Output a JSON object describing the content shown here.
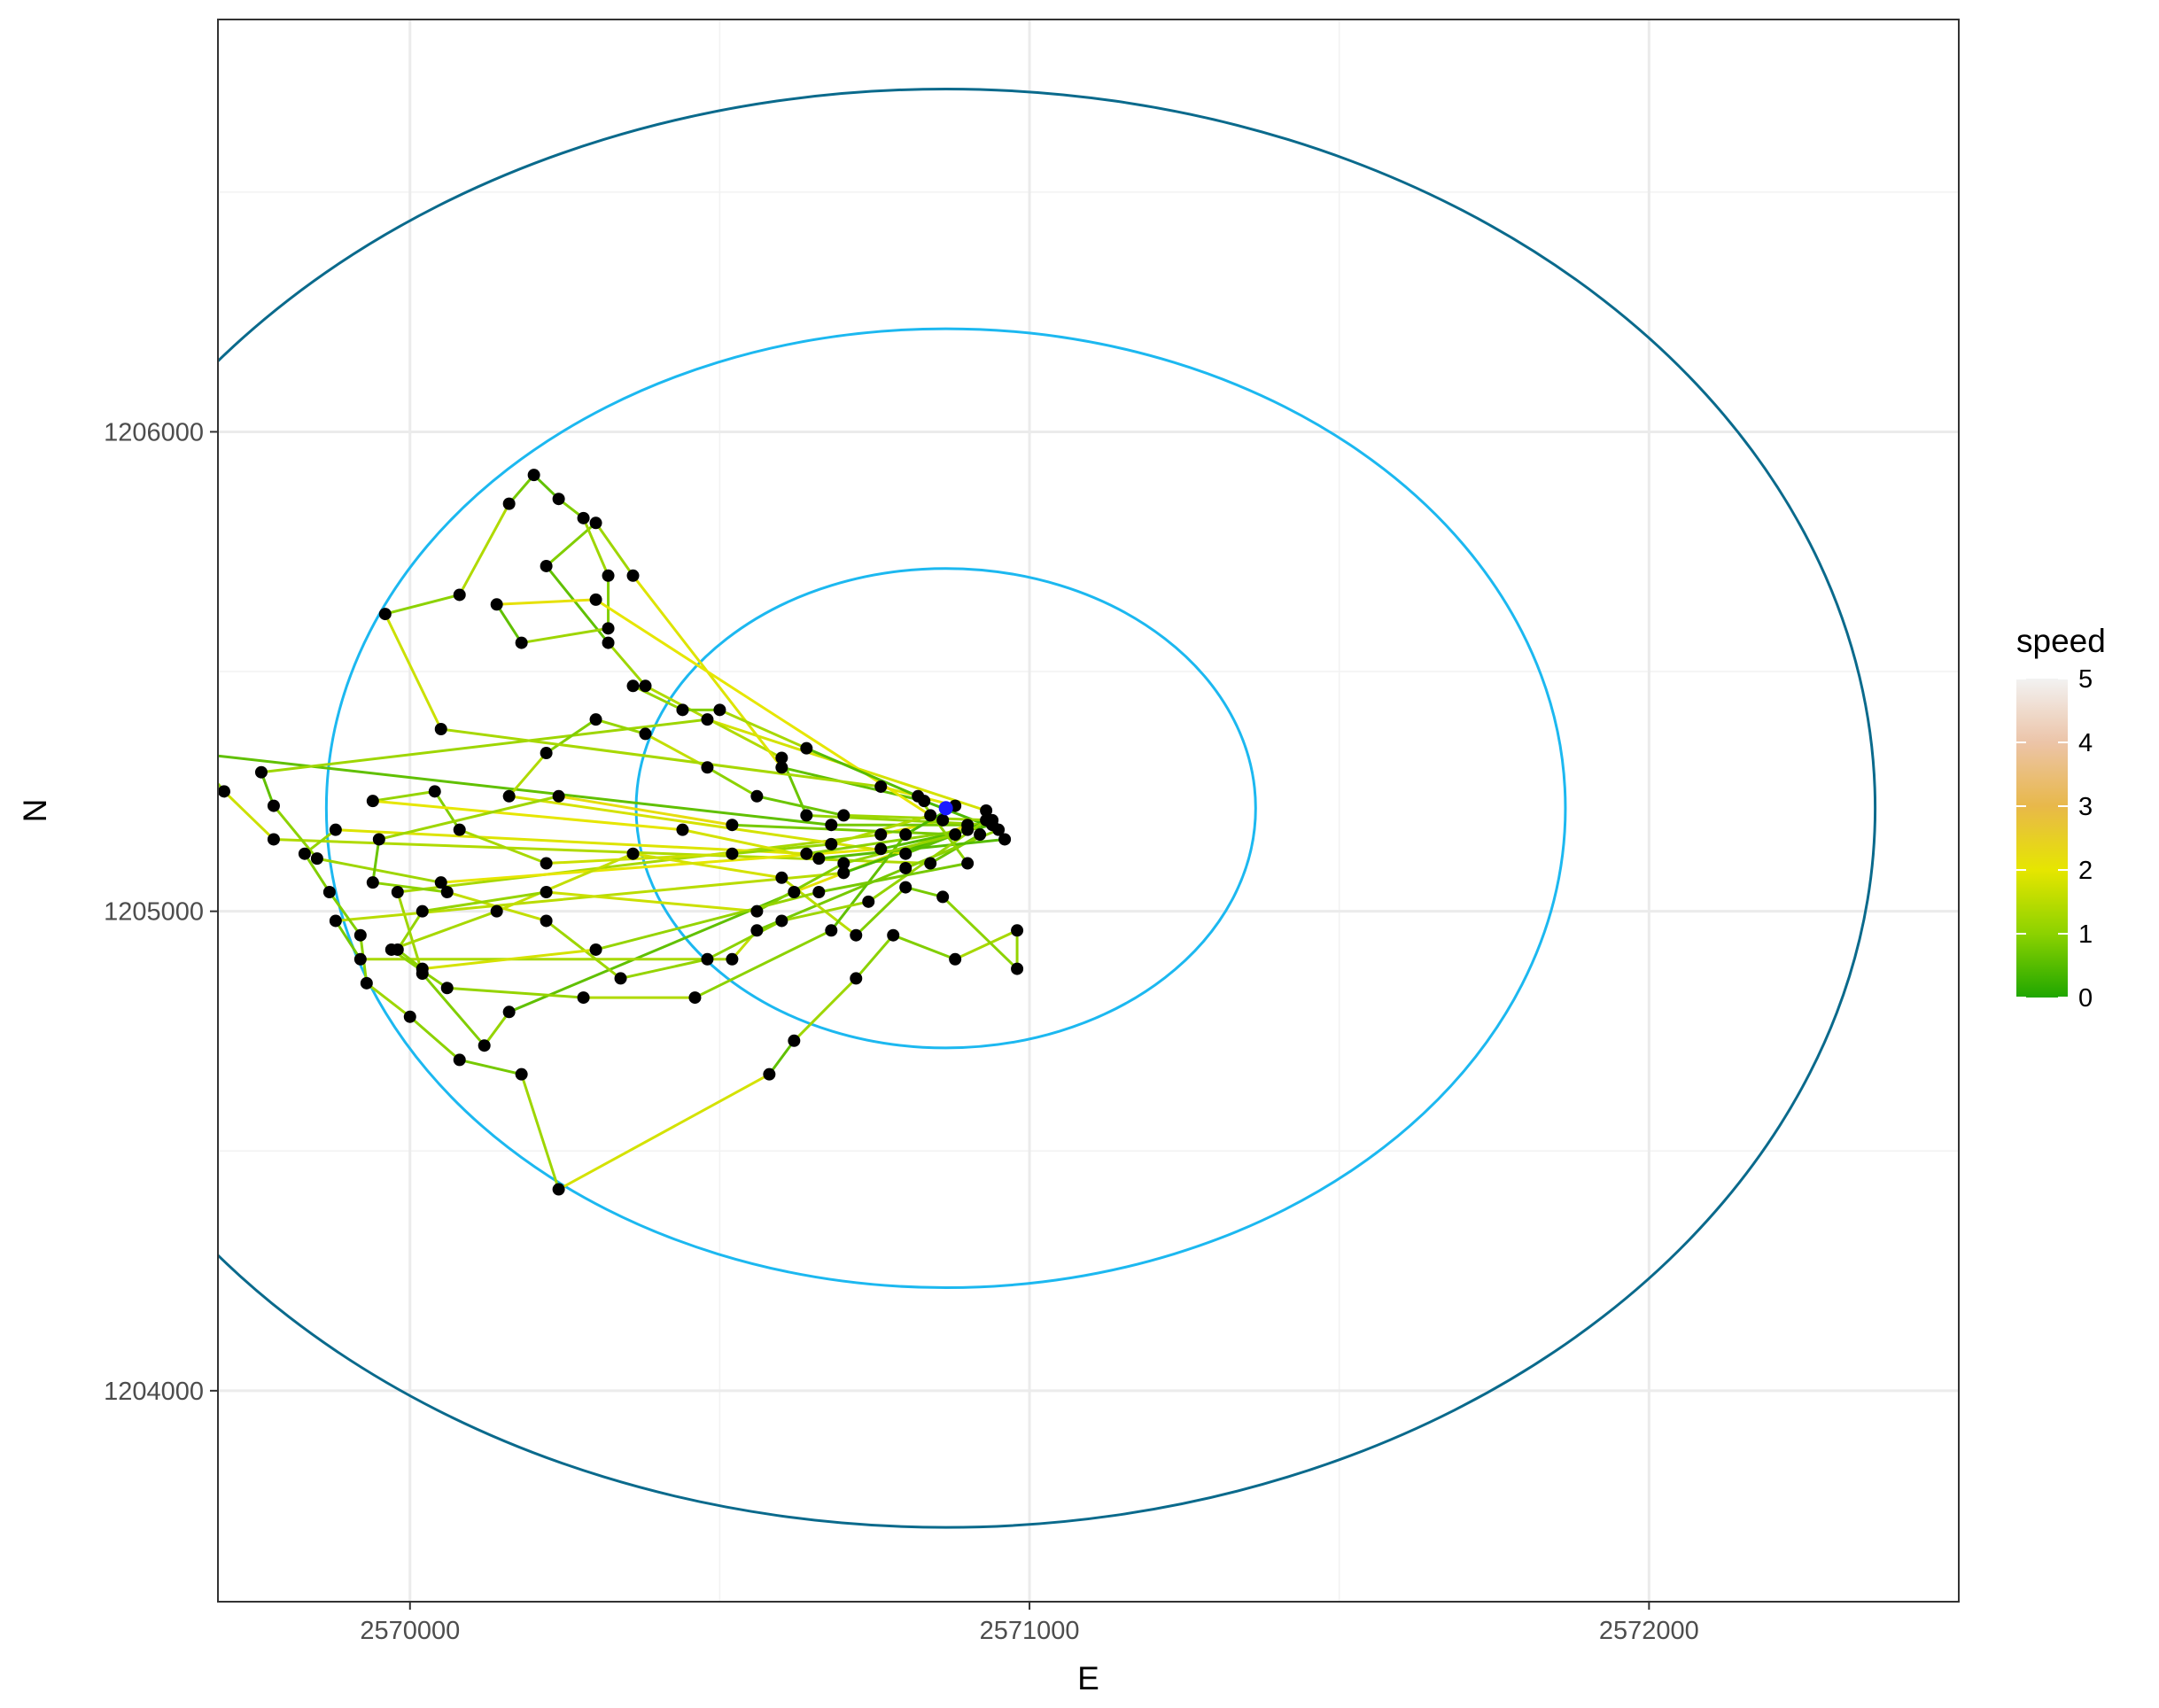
{
  "chart_data": {
    "type": "scatter",
    "xlabel": "E",
    "ylabel": "N",
    "xlim": [
      2569690,
      2572500
    ],
    "ylim": [
      1203560,
      1206860
    ],
    "x_ticks": [
      2570000,
      2571000,
      2572000
    ],
    "x_tick_labels": [
      "2570000",
      "2571000",
      "2572000"
    ],
    "y_ticks": [
      1204000,
      1205000,
      1206000
    ],
    "y_tick_labels": [
      "1204000",
      "1205000",
      "1206000"
    ],
    "grid": true,
    "legend": {
      "title": "speed",
      "position": "right",
      "range": [
        0,
        5
      ],
      "ticks": [
        0,
        1,
        2,
        3,
        4,
        5
      ],
      "tick_labels": [
        "0",
        "1",
        "2",
        "3",
        "4",
        "5"
      ],
      "colors": [
        "#1fa600",
        "#8cd200",
        "#e6e600",
        "#e8b84a",
        "#ecc4a8",
        "#f2f2f2"
      ]
    },
    "center": {
      "x": 2570865,
      "y": 1205215,
      "color": "#1a1aff"
    },
    "circles": [
      {
        "radius": 500,
        "color": "#1cb8f0"
      },
      {
        "radius": 1000,
        "color": "#1cb8f0"
      },
      {
        "radius": 1500,
        "color": "#0a6a8c"
      }
    ],
    "track": [
      [
        2570860,
        1205190,
        0.4
      ],
      [
        2570760,
        1205160,
        2.0
      ],
      [
        2569980,
        1205040,
        1.3
      ],
      [
        2570020,
        1204870,
        1.2
      ],
      [
        2570120,
        1204720,
        0.9
      ],
      [
        2570160,
        1204790,
        1.1
      ],
      [
        2570620,
        1205040,
        0.6
      ],
      [
        2570900,
        1205180,
        2.1
      ],
      [
        2570680,
        1205180,
        0.8
      ],
      [
        2569650,
        1205330,
        0.6
      ],
      [
        2569700,
        1205250,
        1.0
      ],
      [
        2569780,
        1205150,
        1.7
      ],
      [
        2570840,
        1205100,
        1.4
      ],
      [
        2570920,
        1205160,
        0.7
      ],
      [
        2570930,
        1205210,
        0.3
      ],
      [
        2570480,
        1205400,
        1.8
      ],
      [
        2569760,
        1205290,
        1.2
      ],
      [
        2569780,
        1205220,
        0.6
      ],
      [
        2569850,
        1205110,
        1.0
      ],
      [
        2570050,
        1205060,
        1.2
      ],
      [
        2570760,
        1205130,
        2.0
      ],
      [
        2570940,
        1205180,
        0.5
      ],
      [
        2570640,
        1205200,
        1.1
      ],
      [
        2570600,
        1205320,
        0.7
      ],
      [
        2570380,
        1205470,
        1.4
      ],
      [
        2570320,
        1205560,
        1.2
      ],
      [
        2570220,
        1205720,
        0.6
      ],
      [
        2570300,
        1205810,
        0.9
      ],
      [
        2570360,
        1205700,
        1.2
      ],
      [
        2570600,
        1205300,
        1.9
      ],
      [
        2570830,
        1205230,
        0.6
      ],
      [
        2570950,
        1205170,
        0.4
      ],
      [
        2570800,
        1205090,
        1.0
      ],
      [
        2570560,
        1204960,
        0.8
      ],
      [
        2570520,
        1204900,
        1.6
      ],
      [
        2569920,
        1204900,
        1.3
      ],
      [
        2569880,
        1204980,
        0.8
      ],
      [
        2570700,
        1205080,
        1.5
      ],
      [
        2570940,
        1205190,
        0.4
      ],
      [
        2570700,
        1205200,
        1.2
      ],
      [
        2570560,
        1205240,
        0.7
      ],
      [
        2570480,
        1205300,
        1.0
      ],
      [
        2570380,
        1205370,
        1.6
      ],
      [
        2570300,
        1205400,
        1.1
      ],
      [
        2570220,
        1205330,
        0.9
      ],
      [
        2570160,
        1205240,
        1.4
      ],
      [
        2570800,
        1205120,
        1.8
      ],
      [
        2570900,
        1205170,
        0.6
      ],
      [
        2570640,
        1205120,
        1.0
      ],
      [
        2569880,
        1205170,
        1.9
      ],
      [
        2569830,
        1205120,
        1.1
      ],
      [
        2569870,
        1205040,
        0.9
      ],
      [
        2569920,
        1204950,
        0.9
      ],
      [
        2569930,
        1204850,
        1.0
      ],
      [
        2570000,
        1204780,
        1.2
      ],
      [
        2570080,
        1204690,
        1.0
      ],
      [
        2570180,
        1204660,
        0.8
      ],
      [
        2570240,
        1204420,
        1.2
      ],
      [
        2570580,
        1204660,
        1.8
      ],
      [
        2570620,
        1204730,
        0.6
      ],
      [
        2570720,
        1204860,
        1.2
      ],
      [
        2570780,
        1204950,
        1.0
      ],
      [
        2570880,
        1204900,
        0.9
      ],
      [
        2570980,
        1204960,
        1.3
      ],
      [
        2570980,
        1204880,
        1.1
      ],
      [
        2570860,
        1205030,
        1.0
      ],
      [
        2570800,
        1205050,
        0.8
      ],
      [
        2570720,
        1204950,
        0.9
      ],
      [
        2570600,
        1205070,
        1.5
      ],
      [
        2570360,
        1205120,
        1.8
      ],
      [
        2570140,
        1205000,
        1.6
      ],
      [
        2569970,
        1204920,
        1.3
      ],
      [
        2570060,
        1204840,
        1.0
      ],
      [
        2570280,
        1204820,
        1.1
      ],
      [
        2570460,
        1204820,
        1.4
      ],
      [
        2570680,
        1204960,
        1.0
      ],
      [
        2570800,
        1205160,
        0.6
      ],
      [
        2570880,
        1205220,
        0.4
      ],
      [
        2570760,
        1205260,
        1.9
      ],
      [
        2570050,
        1205380,
        1.3
      ],
      [
        2569960,
        1205620,
        1.7
      ],
      [
        2570080,
        1205660,
        1.0
      ],
      [
        2570160,
        1205850,
        1.4
      ],
      [
        2570200,
        1205910,
        0.8
      ],
      [
        2570240,
        1205860,
        0.6
      ],
      [
        2570280,
        1205820,
        0.9
      ],
      [
        2570320,
        1205700,
        1.2
      ],
      [
        2570320,
        1205590,
        0.9
      ],
      [
        2570180,
        1205560,
        1.2
      ],
      [
        2570140,
        1205640,
        0.6
      ],
      [
        2570300,
        1205650,
        2.1
      ],
      [
        2570840,
        1205200,
        2.0
      ],
      [
        2570680,
        1205140,
        1.4
      ],
      [
        2570520,
        1205120,
        1.1
      ],
      [
        2570220,
        1205100,
        1.7
      ],
      [
        2570080,
        1205170,
        1.3
      ],
      [
        2570040,
        1205250,
        0.9
      ],
      [
        2569940,
        1205230,
        1.1
      ],
      [
        2570440,
        1205170,
        2.0
      ],
      [
        2570660,
        1205110,
        1.8
      ],
      [
        2570960,
        1205150,
        0.5
      ],
      [
        2570930,
        1205190,
        0.3
      ],
      [
        2570740,
        1205020,
        1.1
      ],
      [
        2570600,
        1204980,
        1.2
      ],
      [
        2570480,
        1204900,
        1.0
      ],
      [
        2570340,
        1204860,
        1.1
      ],
      [
        2570220,
        1204980,
        1.2
      ],
      [
        2570060,
        1205040,
        1.6
      ],
      [
        2569940,
        1205060,
        1.0
      ],
      [
        2569950,
        1205150,
        0.7
      ],
      [
        2570240,
        1205240,
        1.2
      ],
      [
        2570520,
        1205180,
        2.2
      ],
      [
        2570880,
        1205160,
        0.8
      ],
      [
        2570700,
        1205100,
        1.1
      ],
      [
        2570560,
        1205000,
        0.9
      ],
      [
        2570220,
        1205040,
        1.7
      ],
      [
        2570020,
        1205000,
        1.1
      ],
      [
        2569980,
        1204920,
        1.1
      ],
      [
        2570020,
        1204880,
        1.0
      ],
      [
        2570300,
        1204920,
        1.8
      ],
      [
        2570660,
        1205040,
        1.1
      ],
      [
        2570900,
        1205100,
        0.8
      ],
      [
        2570820,
        1205240,
        1.0
      ],
      [
        2570640,
        1205340,
        0.5
      ],
      [
        2570500,
        1205420,
        1.3
      ],
      [
        2570440,
        1205420,
        0.9
      ],
      [
        2570360,
        1205470,
        1.1
      ]
    ]
  }
}
